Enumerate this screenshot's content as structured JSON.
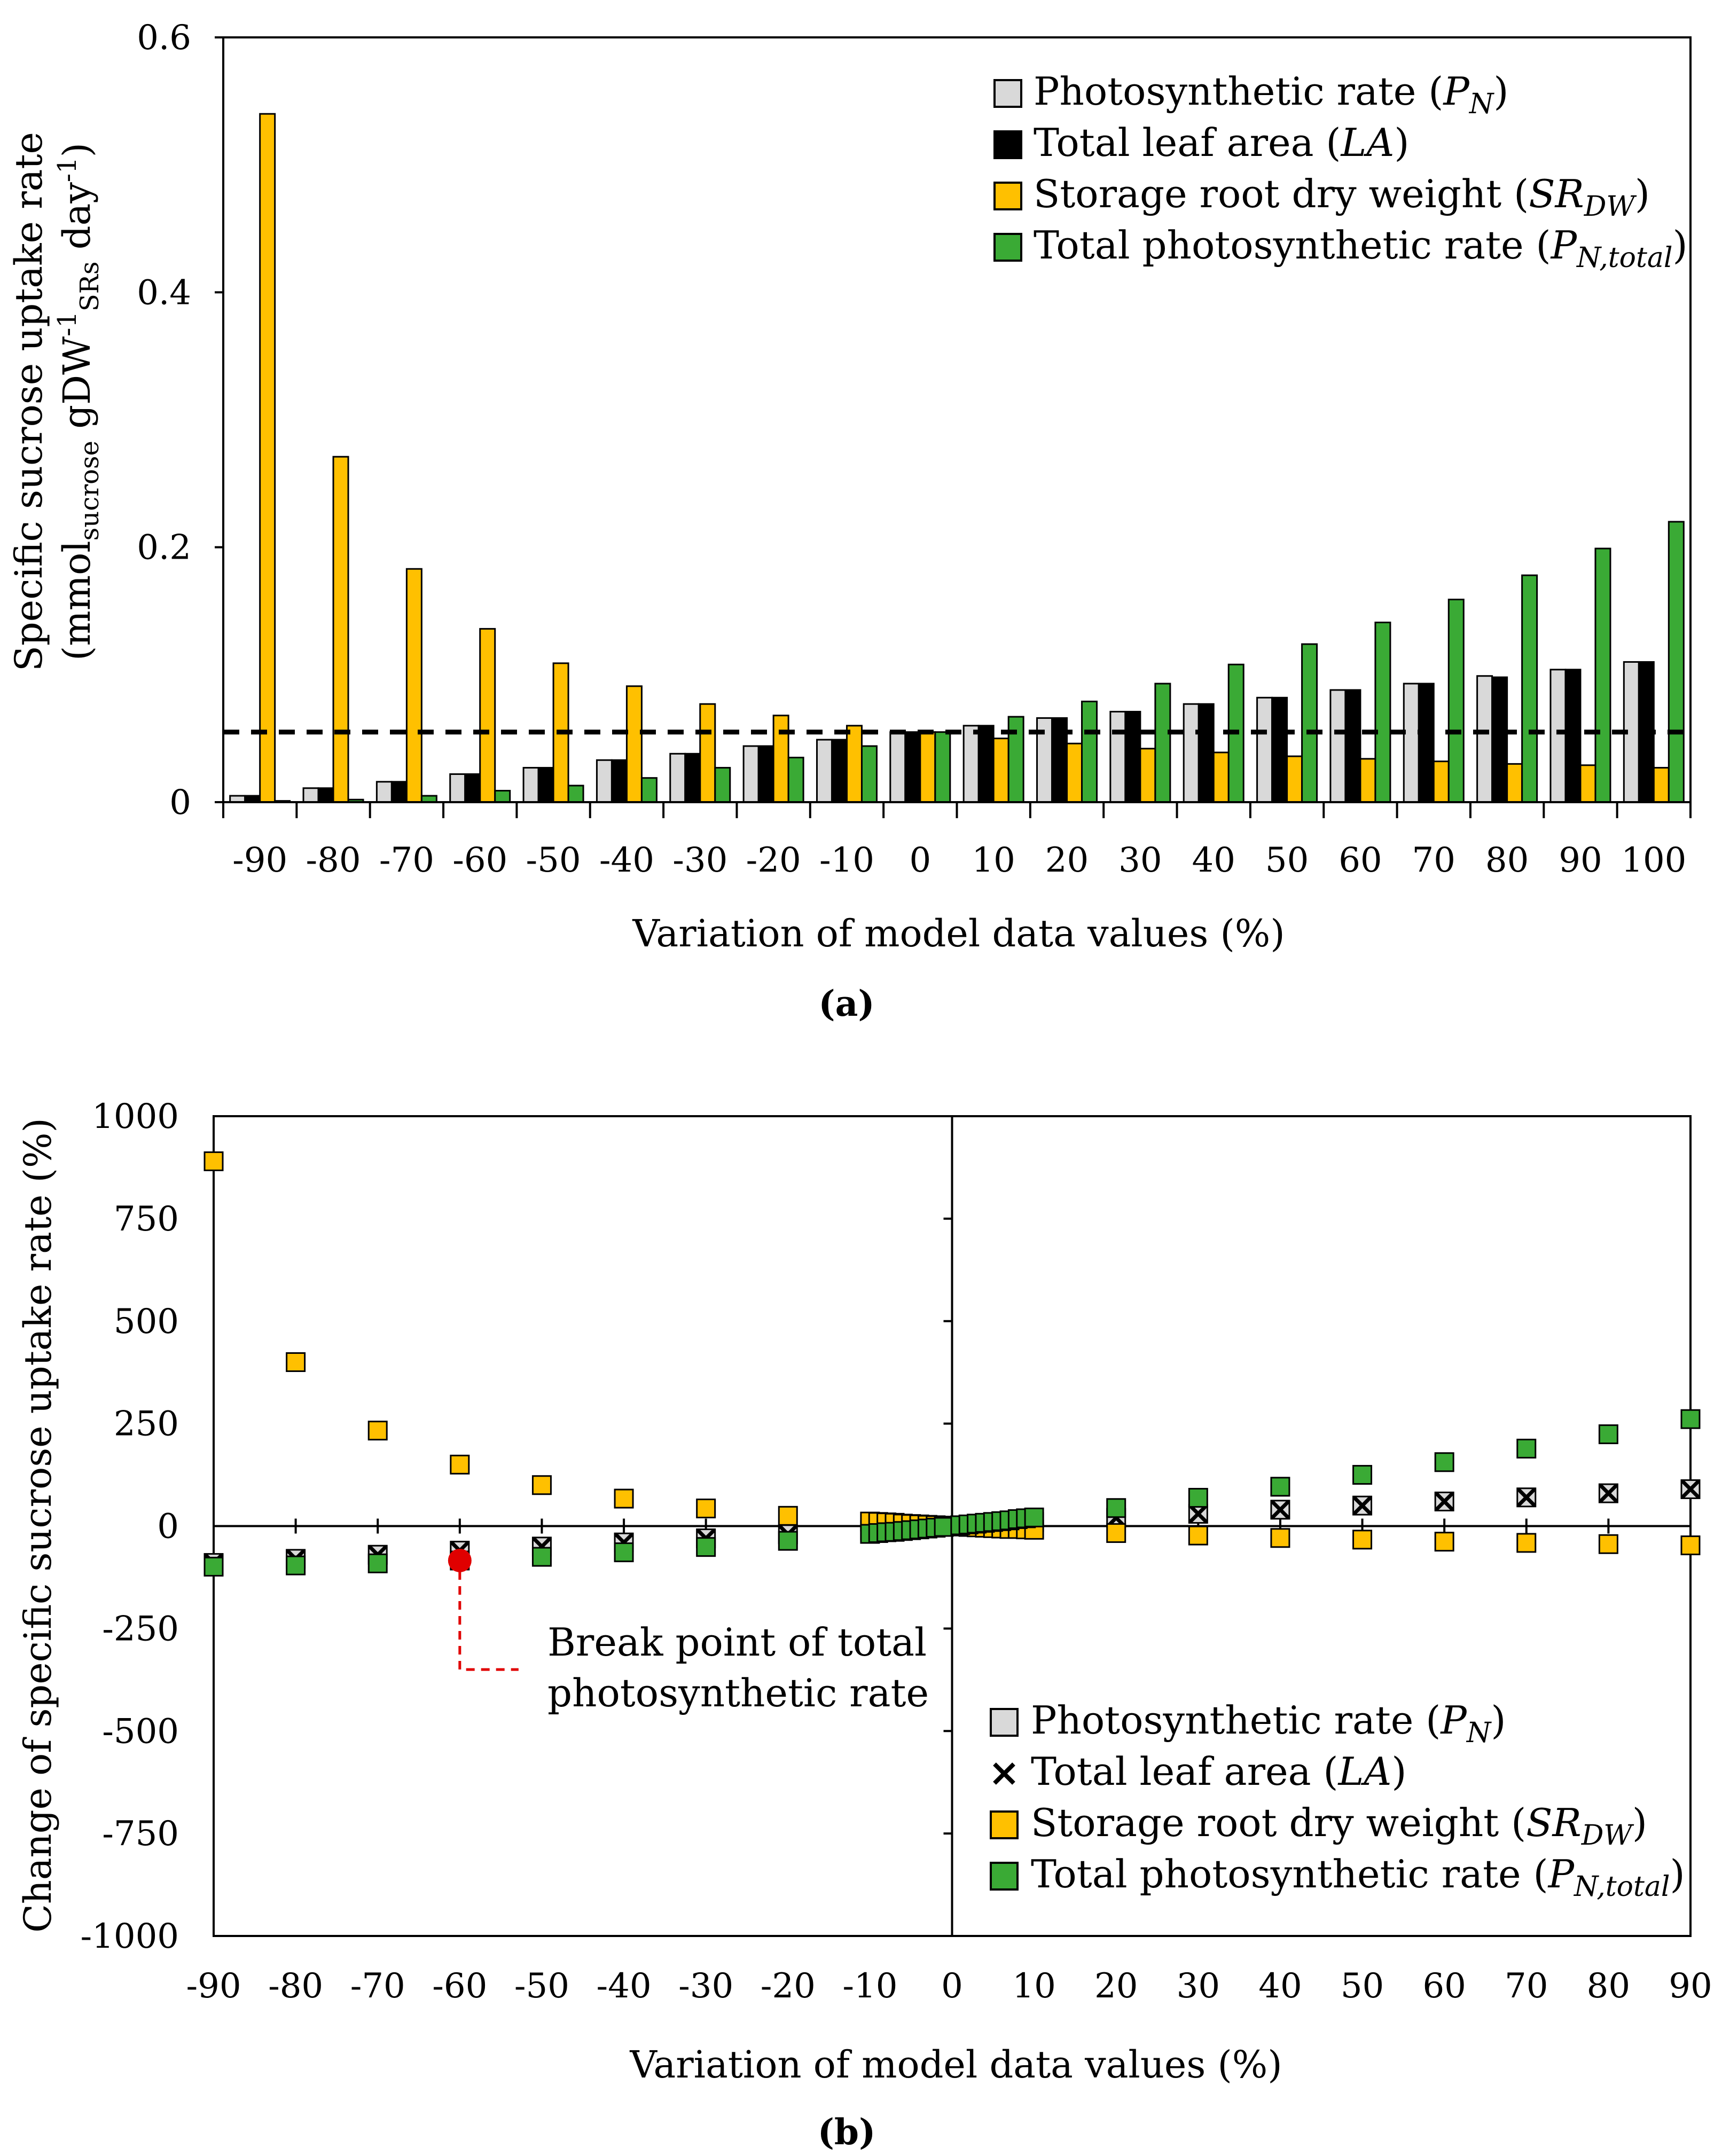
{
  "colors": {
    "photosynthetic_rate": "#d9d9d9",
    "total_leaf_area": "#000000",
    "storage_root_dry_weight": "#ffc000",
    "total_photosynthetic_rate": "#3aaa35",
    "break_point": "#e00000"
  },
  "chart_data": [
    {
      "id": "a",
      "type": "bar",
      "panel_label": "(a)",
      "xlabel": "Variation of model data values (%)",
      "ylabel_line1": "Specific sucrose uptake rate",
      "ylabel_line2": "(mmol sucrose gDW-1 SRs day-1)",
      "ylim": [
        0,
        0.6
      ],
      "yticks": [
        "0",
        "0.2",
        "0.4",
        "0.6"
      ],
      "categories": [
        "-90",
        "-80",
        "-70",
        "-60",
        "-50",
        "-40",
        "-30",
        "-20",
        "-10",
        "0",
        "10",
        "20",
        "30",
        "40",
        "50",
        "60",
        "70",
        "80",
        "90",
        "100"
      ],
      "reference_line": 0.055,
      "series": [
        {
          "name": "Photosynthetic rate (PN)",
          "values": [
            0.005,
            0.011,
            0.016,
            0.022,
            0.027,
            0.033,
            0.038,
            0.044,
            0.049,
            0.055,
            0.06,
            0.066,
            0.071,
            0.077,
            0.082,
            0.088,
            0.093,
            0.099,
            0.104,
            0.11
          ]
        },
        {
          "name": "Total leaf area (LA)",
          "values": [
            0.005,
            0.011,
            0.016,
            0.022,
            0.027,
            0.033,
            0.038,
            0.044,
            0.049,
            0.055,
            0.06,
            0.066,
            0.071,
            0.077,
            0.082,
            0.088,
            0.093,
            0.098,
            0.104,
            0.11
          ]
        },
        {
          "name": "Storage root dry weight (SRDW)",
          "values": [
            0.54,
            0.271,
            0.183,
            0.136,
            0.109,
            0.091,
            0.077,
            0.068,
            0.06,
            0.055,
            0.05,
            0.046,
            0.042,
            0.039,
            0.036,
            0.034,
            0.032,
            0.03,
            0.029,
            0.027
          ]
        },
        {
          "name": "Total photosynthetic rate (PN,total)",
          "values": [
            0.001,
            0.002,
            0.005,
            0.009,
            0.013,
            0.019,
            0.027,
            0.035,
            0.044,
            0.055,
            0.067,
            0.079,
            0.093,
            0.108,
            0.124,
            0.141,
            0.159,
            0.178,
            0.199,
            0.22
          ]
        }
      ],
      "legend": [
        {
          "label": "Photosynthetic  rate (",
          "var": "P",
          "sub": "N",
          "close": ")"
        },
        {
          "label": "Total leaf area (",
          "var": "LA",
          "sub": "",
          "close": ")"
        },
        {
          "label": "Storage root dry weight (",
          "var": "SR",
          "sub": "DW",
          "close": ")"
        },
        {
          "label": "Total photosynthetic  rate (",
          "var": "P",
          "sub": "N,total",
          "close": ")"
        }
      ]
    },
    {
      "id": "b",
      "type": "scatter",
      "panel_label": "(b)",
      "xlabel": "Variation of model data values (%)",
      "ylabel": "Change of specific sucrose  uptake rate (%)",
      "xlim": [
        -90,
        90
      ],
      "ylim": [
        -1000,
        1000
      ],
      "xticks": [
        "-90",
        "-80",
        "-70",
        "-60",
        "-50",
        "-40",
        "-30",
        "-20",
        "-10",
        "0",
        "10",
        "20",
        "30",
        "40",
        "50",
        "60",
        "70",
        "80",
        "90"
      ],
      "yticks": [
        "1000",
        "750",
        "500",
        "250",
        "0",
        "-250",
        "-500",
        "-750",
        "-1000"
      ],
      "series": [
        {
          "name": "Photosynthetic rate (PN)",
          "marker": "square",
          "x": [
            -90,
            -80,
            -70,
            -60,
            -50,
            -40,
            -30,
            -20,
            -10,
            -9,
            -8,
            -7,
            -6,
            -5,
            -4,
            -3,
            -2,
            -1,
            1,
            2,
            3,
            4,
            5,
            6,
            7,
            8,
            9,
            10,
            20,
            30,
            40,
            50,
            60,
            70,
            80,
            90
          ],
          "y": [
            -90,
            -80,
            -70,
            -60,
            -50,
            -40,
            -30,
            -20,
            -10,
            -9,
            -8,
            -7,
            -6,
            -5,
            -4,
            -3,
            -2,
            -1,
            1,
            2,
            3,
            4,
            5,
            6,
            7,
            8,
            9,
            10,
            20,
            30,
            40,
            50,
            60,
            70,
            80,
            90
          ]
        },
        {
          "name": "Total leaf area (LA)",
          "marker": "x",
          "x": [
            -90,
            -80,
            -70,
            -60,
            -50,
            -40,
            -30,
            -20,
            -10,
            -9,
            -8,
            -7,
            -6,
            -5,
            -4,
            -3,
            -2,
            -1,
            1,
            2,
            3,
            4,
            5,
            6,
            7,
            8,
            9,
            10,
            20,
            30,
            40,
            50,
            60,
            70,
            80,
            90
          ],
          "y": [
            -90,
            -80,
            -70,
            -60,
            -50,
            -40,
            -30,
            -20,
            -10,
            -9,
            -8,
            -7,
            -6,
            -5,
            -4,
            -3,
            -2,
            -1,
            1,
            2,
            3,
            4,
            5,
            6,
            7,
            8,
            9,
            10,
            20,
            30,
            40,
            50,
            60,
            70,
            80,
            90
          ]
        },
        {
          "name": "Storage root dry weight (SRDW)",
          "marker": "square",
          "x": [
            -90,
            -80,
            -70,
            -60,
            -50,
            -40,
            -30,
            -20,
            -10,
            -9,
            -8,
            -7,
            -6,
            -5,
            -4,
            -3,
            -2,
            -1,
            1,
            2,
            3,
            4,
            5,
            6,
            7,
            8,
            9,
            10,
            20,
            30,
            40,
            50,
            60,
            70,
            80,
            90
          ],
          "y": [
            890,
            400,
            233,
            150,
            100,
            67,
            43,
            25,
            11,
            10,
            9,
            8,
            6,
            5,
            4,
            3,
            2,
            1,
            -1,
            -2,
            -3,
            -4,
            -5,
            -6,
            -7,
            -7,
            -8,
            -9,
            -17,
            -23,
            -29,
            -33,
            -38,
            -41,
            -44,
            -47
          ]
        },
        {
          "name": "Total photosynthetic rate (PN,total)",
          "marker": "square",
          "x": [
            -90,
            -80,
            -70,
            -60,
            -50,
            -40,
            -30,
            -20,
            -10,
            -9,
            -8,
            -7,
            -6,
            -5,
            -4,
            -3,
            -2,
            -1,
            1,
            2,
            3,
            4,
            5,
            6,
            7,
            8,
            9,
            10,
            20,
            30,
            40,
            50,
            60,
            70,
            80,
            90
          ],
          "y": [
            -99,
            -96,
            -91,
            -84,
            -75,
            -64,
            -51,
            -36,
            -19,
            -17,
            -15,
            -14,
            -12,
            -10,
            -8,
            -6,
            -4,
            -2,
            2,
            4,
            6,
            8,
            10,
            12,
            14,
            17,
            19,
            21,
            44,
            69,
            96,
            125,
            156,
            189,
            224,
            261
          ]
        }
      ],
      "break_point": {
        "x": -60,
        "y": -84,
        "label_line1": "Break point of total",
        "label_line2": "photosynthetic  rate"
      },
      "legend": [
        {
          "label": "Photosynthetic  rate (",
          "var": "P",
          "sub": "N",
          "close": ")"
        },
        {
          "label": "Total leaf area (",
          "var": "LA",
          "sub": "",
          "close": ")"
        },
        {
          "label": "Storage root dry weight (",
          "var": "SR",
          "sub": "DW",
          "close": ")"
        },
        {
          "label": "Total photosynthetic  rate (",
          "var": "P",
          "sub": "N,total",
          "close": ")"
        }
      ]
    }
  ]
}
